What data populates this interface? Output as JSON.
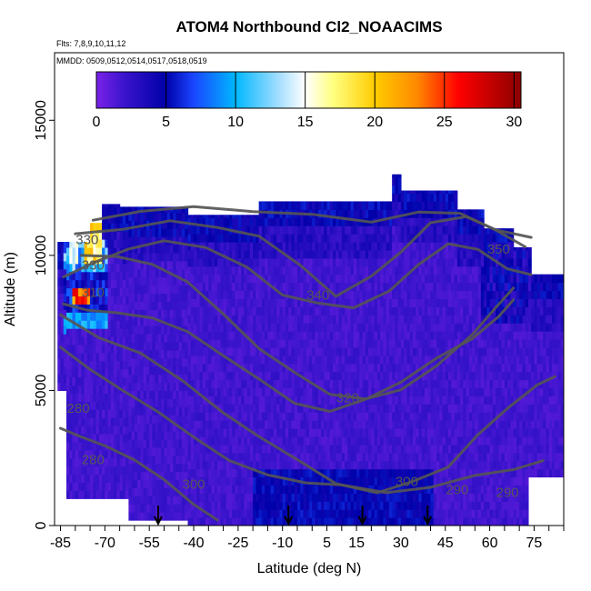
{
  "chart_data": {
    "type": "heatmap",
    "title": "ATOM4 Northbound Cl2_NOAACIMS",
    "subtitle_flights": "Flts: 7,8,9,10,11,12",
    "subtitle_dates": "MMDD: 0509,0512,0514,0517,0518,0519",
    "xlabel": "Latitude (deg N)",
    "ylabel": "Altitude (m)",
    "xlim": [
      -87,
      85
    ],
    "ylim": [
      0,
      17500
    ],
    "x_ticks": [
      -85,
      -70,
      -55,
      -40,
      -25,
      -10,
      5,
      15,
      30,
      45,
      60,
      75
    ],
    "x_tick_labels": [
      "-85",
      "-70",
      "-55",
      "-40",
      "-25",
      "-10",
      "5",
      "15",
      "30",
      "45",
      "60",
      "75"
    ],
    "y_ticks": [
      0,
      5000,
      10000,
      15000
    ],
    "y_tick_labels": [
      "0",
      "5000",
      "10000",
      "15000"
    ],
    "colorbar": {
      "min": 0,
      "max": 30.5,
      "ticks": [
        0,
        5,
        10,
        15,
        20,
        25,
        30
      ],
      "tick_labels": [
        "0",
        "5",
        "10",
        "15",
        "20",
        "25",
        "30"
      ],
      "colors": [
        {
          "v": 0,
          "c": "#7a22e8"
        },
        {
          "v": 2,
          "c": "#3a14cc"
        },
        {
          "v": 5,
          "c": "#0000a8"
        },
        {
          "v": 7,
          "c": "#1a46ff"
        },
        {
          "v": 10,
          "c": "#00b8ff"
        },
        {
          "v": 13,
          "c": "#9fdcff"
        },
        {
          "v": 15,
          "c": "#ffffff"
        },
        {
          "v": 17,
          "c": "#ffff80"
        },
        {
          "v": 20,
          "c": "#ffcc00"
        },
        {
          "v": 23,
          "c": "#ff8a00"
        },
        {
          "v": 26,
          "c": "#ff0000"
        },
        {
          "v": 30.5,
          "c": "#8b0000"
        }
      ]
    },
    "theta_contours": [
      {
        "label": "280",
        "points": [
          [
            -85,
            3600
          ],
          [
            -78,
            3200
          ],
          [
            -70,
            3000
          ],
          [
            -60,
            2400
          ],
          [
            -50,
            1600
          ],
          [
            -40,
            800
          ],
          [
            -32,
            300
          ]
        ]
      },
      {
        "label": "290",
        "points": [
          [
            -85,
            6600
          ],
          [
            -75,
            5800
          ],
          [
            -64,
            5000
          ],
          [
            -52,
            4200
          ],
          [
            -40,
            3200
          ],
          [
            -28,
            2400
          ],
          [
            -15,
            1900
          ],
          [
            -2,
            1500
          ],
          [
            10,
            1400
          ],
          [
            25,
            1300
          ],
          [
            40,
            1500
          ],
          [
            55,
            1800
          ],
          [
            68,
            2100
          ],
          [
            78,
            2400
          ]
        ]
      },
      {
        "label": "300",
        "points": [
          [
            -85,
            7800
          ],
          [
            -72,
            7000
          ],
          [
            -58,
            6300
          ],
          [
            -44,
            5300
          ],
          [
            -30,
            4200
          ],
          [
            -18,
            3200
          ],
          [
            -5,
            2400
          ],
          [
            8,
            1500
          ],
          [
            22,
            1300
          ],
          [
            34,
            1600
          ],
          [
            46,
            2200
          ],
          [
            56,
            3300
          ],
          [
            66,
            4400
          ],
          [
            76,
            5200
          ],
          [
            82,
            5600
          ]
        ]
      },
      {
        "label": "310",
        "points": [
          [
            -84,
            8200
          ],
          [
            -76,
            8000
          ],
          [
            -66,
            7900
          ],
          [
            -54,
            7700
          ],
          [
            -42,
            7200
          ],
          [
            -30,
            6300
          ],
          [
            -18,
            5400
          ],
          [
            -6,
            4600
          ],
          [
            6,
            4300
          ],
          [
            18,
            4600
          ],
          [
            30,
            5300
          ],
          [
            42,
            6100
          ],
          [
            54,
            7000
          ],
          [
            63,
            7700
          ],
          [
            68,
            8300
          ]
        ]
      },
      {
        "label": "320",
        "points": [
          [
            -78,
            10000
          ],
          [
            -66,
            9900
          ],
          [
            -54,
            9600
          ],
          [
            -42,
            9000
          ],
          [
            -30,
            7900
          ],
          [
            -18,
            6600
          ],
          [
            -6,
            5600
          ],
          [
            6,
            4900
          ],
          [
            18,
            4600
          ],
          [
            30,
            5000
          ],
          [
            42,
            5900
          ],
          [
            54,
            7000
          ],
          [
            62,
            8000
          ],
          [
            68,
            8800
          ]
        ]
      },
      {
        "label": "330",
        "points": [
          [
            -84,
            9200
          ],
          [
            -74,
            9700
          ],
          [
            -62,
            10300
          ],
          [
            -50,
            10500
          ],
          [
            -36,
            10300
          ],
          [
            -22,
            9500
          ],
          [
            -10,
            8600
          ],
          [
            2,
            8200
          ],
          [
            14,
            8000
          ],
          [
            26,
            8600
          ],
          [
            36,
            9600
          ],
          [
            46,
            10400
          ],
          [
            56,
            10200
          ],
          [
            66,
            9600
          ],
          [
            74,
            9300
          ]
        ]
      },
      {
        "label": "340",
        "points": [
          [
            -80,
            10800
          ],
          [
            -64,
            11000
          ],
          [
            -48,
            11300
          ],
          [
            -32,
            11100
          ],
          [
            -18,
            10700
          ],
          [
            -4,
            9600
          ],
          [
            8,
            8500
          ],
          [
            20,
            9200
          ],
          [
            30,
            10200
          ],
          [
            40,
            11200
          ],
          [
            52,
            11400
          ],
          [
            62,
            10900
          ],
          [
            72,
            10400
          ]
        ]
      },
      {
        "label": "350",
        "points": [
          [
            -74,
            11300
          ],
          [
            -58,
            11600
          ],
          [
            -40,
            11800
          ],
          [
            -20,
            11700
          ],
          [
            0,
            11500
          ],
          [
            20,
            11300
          ],
          [
            36,
            11700
          ],
          [
            50,
            11500
          ],
          [
            62,
            11000
          ],
          [
            74,
            10700
          ]
        ]
      }
    ],
    "contour_labels": [
      {
        "text": "330",
        "x": -76,
        "y": 10550
      },
      {
        "text": "330",
        "x": -74,
        "y": 9600
      },
      {
        "text": "310",
        "x": -74,
        "y": 8600
      },
      {
        "text": "340",
        "x": 2,
        "y": 8500
      },
      {
        "text": "320",
        "x": 12,
        "y": 4700
      },
      {
        "text": "300",
        "x": 32,
        "y": 1600
      },
      {
        "text": "300",
        "x": -40,
        "y": 1500
      },
      {
        "text": "290",
        "x": 49,
        "y": 1300
      },
      {
        "text": "290",
        "x": 66,
        "y": 1200
      },
      {
        "text": "280",
        "x": -79,
        "y": 4300
      },
      {
        "text": "280",
        "x": -74,
        "y": 2400
      },
      {
        "text": "350",
        "x": 63,
        "y": 10200
      }
    ],
    "flight_arrows_lat": [
      -52,
      -8,
      17,
      39
    ]
  }
}
